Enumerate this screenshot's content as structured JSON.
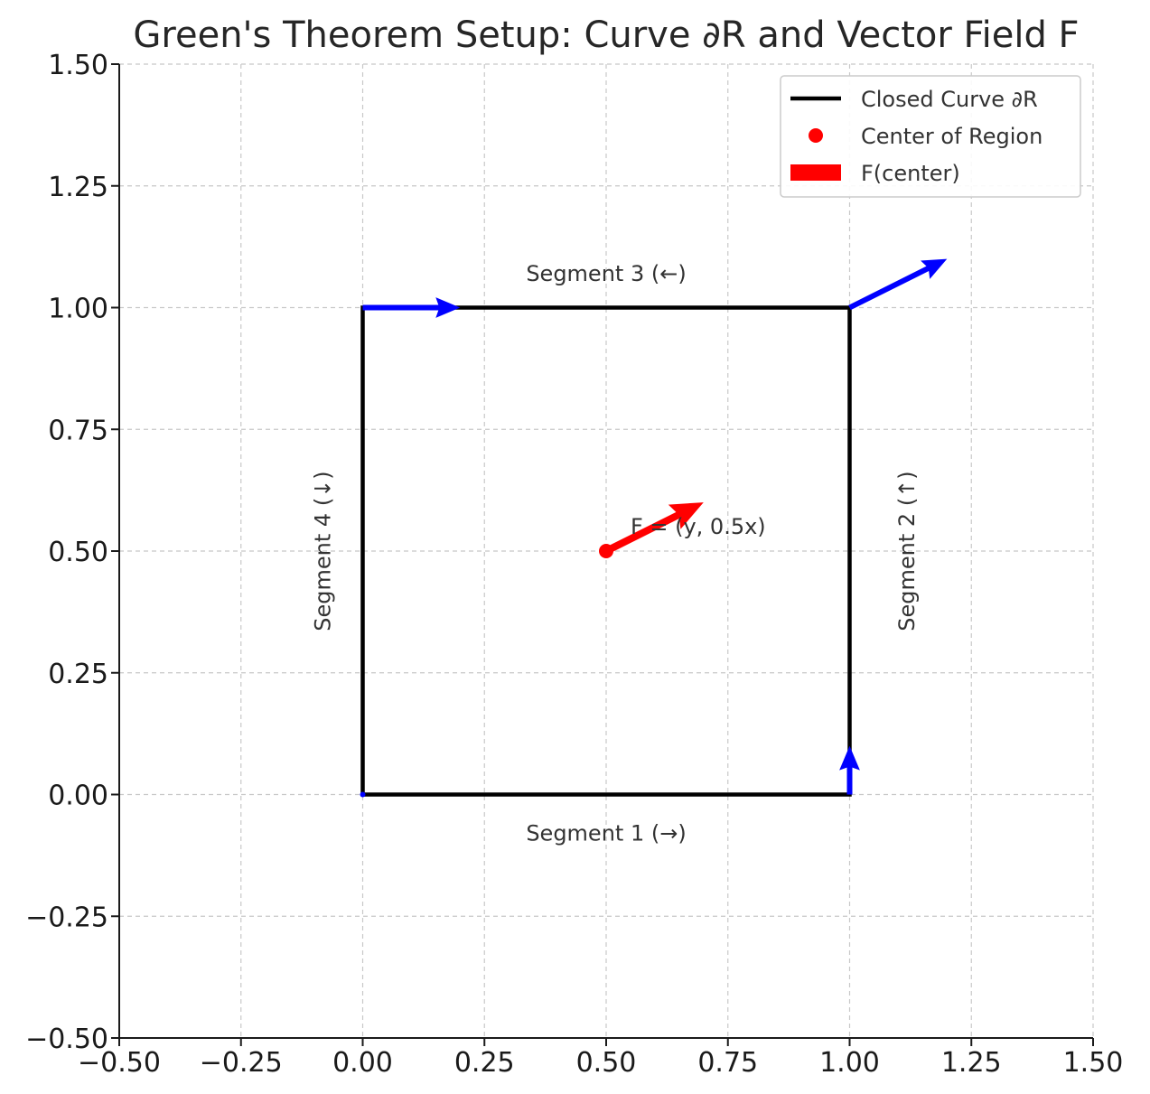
{
  "chart_data": {
    "type": "line",
    "title": "Green's Theorem Setup: Curve ∂R and Vector Field F",
    "xlabel": "",
    "ylabel": "",
    "xlim": [
      -0.5,
      1.5
    ],
    "ylim": [
      -0.5,
      1.5
    ],
    "grid": true,
    "x_ticks": [
      -0.5,
      -0.25,
      0.0,
      0.25,
      0.5,
      0.75,
      1.0,
      1.25,
      1.5
    ],
    "y_ticks": [
      -0.5,
      -0.25,
      0.0,
      0.25,
      0.5,
      0.75,
      1.0,
      1.25,
      1.5
    ],
    "x_tick_labels": [
      "−0.50",
      "−0.25",
      "0.00",
      "0.25",
      "0.50",
      "0.75",
      "1.00",
      "1.25",
      "1.50"
    ],
    "y_tick_labels": [
      "−0.50",
      "−0.25",
      "0.00",
      "0.25",
      "0.50",
      "0.75",
      "1.00",
      "1.25",
      "1.50"
    ],
    "curve": {
      "name": "Closed Curve ∂R",
      "color": "#000000",
      "points": [
        [
          0,
          0
        ],
        [
          1,
          0
        ],
        [
          1,
          1
        ],
        [
          0,
          1
        ],
        [
          0,
          0
        ]
      ]
    },
    "center": {
      "name": "Center of Region",
      "color": "#ff0000",
      "x": 0.5,
      "y": 0.5
    },
    "center_vector": {
      "name": "F(center)",
      "color": "#ff0000",
      "x": 0.5,
      "y": 0.5,
      "u": 0.2,
      "v": 0.1
    },
    "boundary_vectors": {
      "color": "#0000ff",
      "items": [
        {
          "x": 0,
          "y": 0,
          "u": 0,
          "v": 0
        },
        {
          "x": 1,
          "y": 0,
          "u": 0,
          "v": 0.1
        },
        {
          "x": 1,
          "y": 1,
          "u": 0.2,
          "v": 0.1
        },
        {
          "x": 0,
          "y": 1,
          "u": 0.2,
          "v": 0
        }
      ]
    },
    "annotations": [
      {
        "text": "Segment 1 (→)",
        "x": 0.5,
        "y": -0.08,
        "rotation": 0
      },
      {
        "text": "Segment 2 (↑)",
        "x": 1.12,
        "y": 0.5,
        "rotation": 90
      },
      {
        "text": "Segment 3 (←)",
        "x": 0.5,
        "y": 1.07,
        "rotation": 0
      },
      {
        "text": "Segment 4 (↓)",
        "x": -0.08,
        "y": 0.5,
        "rotation": 90
      },
      {
        "text": "F = (y, 0.5x)",
        "x": 0.55,
        "y": 0.55,
        "rotation": 0
      }
    ],
    "legend": {
      "position": "top-right",
      "entries": [
        {
          "label": "Closed Curve ∂R",
          "kind": "line",
          "color": "#000000"
        },
        {
          "label": "Center of Region",
          "kind": "marker",
          "color": "#ff0000"
        },
        {
          "label": "F(center)",
          "kind": "patch",
          "color": "#ff0000"
        }
      ]
    }
  }
}
